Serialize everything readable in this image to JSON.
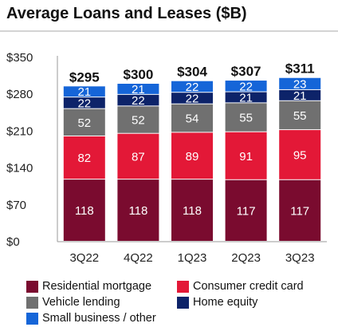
{
  "chart_data": {
    "type": "bar",
    "stacked": true,
    "title": "Average Loans and Leases ($B)",
    "categories": [
      "3Q22",
      "4Q22",
      "1Q23",
      "2Q23",
      "3Q23"
    ],
    "totals": [
      "$295",
      "$300",
      "$304",
      "$307",
      "$311"
    ],
    "total_values": [
      295,
      300,
      304,
      307,
      311
    ],
    "ylim": [
      0,
      350
    ],
    "yticks": [
      0,
      70,
      140,
      210,
      280,
      350
    ],
    "ytick_labels": [
      "$0",
      "$70",
      "$140",
      "$210",
      "$280",
      "$350"
    ],
    "grid": false,
    "legend_position": "bottom",
    "series": [
      {
        "name": "Residential mortgage",
        "color": "#7a0b2f",
        "label_color": "#ffffff",
        "values": [
          118,
          118,
          118,
          117,
          117
        ]
      },
      {
        "name": "Consumer credit card",
        "color": "#e31837",
        "label_color": "#ffffff",
        "values": [
          82,
          87,
          89,
          91,
          95
        ]
      },
      {
        "name": "Vehicle lending",
        "color": "#707070",
        "label_color": "#ffffff",
        "values": [
          52,
          52,
          54,
          55,
          55
        ]
      },
      {
        "name": "Home equity",
        "color": "#0d2369",
        "label_color": "#ffffff",
        "values": [
          22,
          22,
          22,
          21,
          21
        ]
      },
      {
        "name": "Small business / other",
        "color": "#1565d8",
        "label_color": "#ffffff",
        "values": [
          21,
          21,
          22,
          22,
          23
        ]
      }
    ]
  }
}
